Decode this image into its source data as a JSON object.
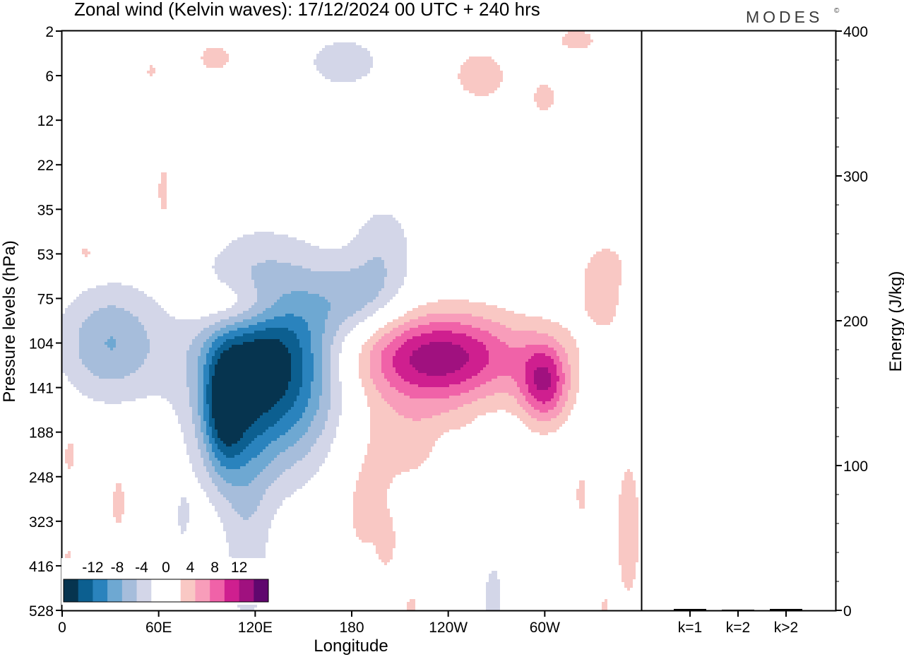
{
  "title": "Zonal wind (Kelvin waves):  17/12/2024  00 UTC  + 240 hrs",
  "logo": "MODES",
  "logo_mark": "©",
  "colors": {
    "neg": [
      "#06344f",
      "#0c5f90",
      "#2a83bd",
      "#6ea8d2",
      "#a6bddb",
      "#d3d6e8"
    ],
    "zero": "#ffffff",
    "pos": [
      "#f9c8c4",
      "#f89dba",
      "#f062a8",
      "#cf1f8f",
      "#a0117f",
      "#60076e"
    ]
  },
  "chart_data": [
    {
      "type": "heatmap",
      "title": "Zonal wind (Kelvin waves):  17/12/2024  00 UTC  + 240 hrs",
      "xlabel": "Longitude",
      "ylabel": "Pressure levels (hPa)",
      "x_ticks": [
        {
          "label": "0",
          "lon": 0
        },
        {
          "label": "60E",
          "lon": 60
        },
        {
          "label": "120E",
          "lon": 120
        },
        {
          "label": "180",
          "lon": 180
        },
        {
          "label": "120W",
          "lon": 240
        },
        {
          "label": "60W",
          "lon": 300
        }
      ],
      "xlim": [
        0,
        360
      ],
      "y_levels": [
        2,
        6,
        12,
        22,
        35,
        53,
        75,
        104,
        141,
        188,
        248,
        323,
        416,
        528
      ],
      "y_scale": "level-index",
      "colorbar": {
        "labels": [
          "-12",
          "-8",
          "-4",
          "0",
          "4",
          "8",
          "12"
        ],
        "levels": [
          -12,
          -8,
          -4,
          0,
          4,
          8,
          12
        ],
        "step": 2
      },
      "features": [
        {
          "lon": 128,
          "level_index": 7.5,
          "lon_width": 60,
          "level_height": 3.0,
          "peak": -14,
          "tilt_deg": -30
        },
        {
          "lon": 100,
          "level_index": 8.6,
          "lon_width": 18,
          "level_height": 2.0,
          "peak": -8,
          "tilt_deg": -50
        },
        {
          "lon": 115,
          "level_index": 11.0,
          "lon_width": 22,
          "level_height": 5.0,
          "peak": -3,
          "tilt_deg": -85
        },
        {
          "lon": 30,
          "level_index": 7.0,
          "lon_width": 45,
          "level_height": 1.8,
          "peak": -6,
          "tilt_deg": -20
        },
        {
          "lon": 185,
          "level_index": 6.0,
          "lon_width": 40,
          "level_height": 1.2,
          "peak": -4,
          "tilt_deg": -25
        },
        {
          "lon": 200,
          "level_index": 4.8,
          "lon_width": 28,
          "level_height": 1.5,
          "peak": -3,
          "tilt_deg": -10
        },
        {
          "lon": 175,
          "level_index": 0.7,
          "lon_width": 40,
          "level_height": 1.0,
          "peak": -3,
          "tilt_deg": 0
        },
        {
          "lon": 30,
          "level_index": 0.4,
          "lon_width": 40,
          "level_height": 0.7,
          "peak": -2,
          "tilt_deg": 0
        },
        {
          "lon": 318,
          "level_index": 2.9,
          "lon_width": 10,
          "level_height": 0.9,
          "peak": -2,
          "tilt_deg": 0
        },
        {
          "lon": 268,
          "level_index": 12.8,
          "lon_width": 10,
          "level_height": 1.6,
          "peak": -3,
          "tilt_deg": 0
        },
        {
          "lon": 240,
          "level_index": 9.8,
          "lon_width": 12,
          "level_height": 0.9,
          "peak": -3,
          "tilt_deg": 0
        },
        {
          "lon": 262,
          "level_index": 9.4,
          "lon_width": 8,
          "level_height": 0.7,
          "peak": -2,
          "tilt_deg": 0
        },
        {
          "lon": 282,
          "level_index": 9.4,
          "lon_width": 6,
          "level_height": 0.6,
          "peak": -2,
          "tilt_deg": 0
        },
        {
          "lon": 352,
          "level_index": 6.1,
          "lon_width": 8,
          "level_height": 0.8,
          "peak": -2,
          "tilt_deg": 0
        },
        {
          "lon": 75,
          "level_index": 11.0,
          "lon_width": 12,
          "level_height": 1.5,
          "peak": -2,
          "tilt_deg": 0
        },
        {
          "lon": 235,
          "level_index": 7.3,
          "lon_width": 75,
          "level_height": 1.4,
          "peak": 11,
          "tilt_deg": 5
        },
        {
          "lon": 300,
          "level_index": 7.9,
          "lon_width": 22,
          "level_height": 1.3,
          "peak": 9,
          "tilt_deg": -15
        },
        {
          "lon": 215,
          "level_index": 9.0,
          "lon_width": 55,
          "level_height": 1.8,
          "peak": 3,
          "tilt_deg": 0
        },
        {
          "lon": 188,
          "level_index": 10.8,
          "lon_width": 25,
          "level_height": 2.0,
          "peak": 2.5,
          "tilt_deg": -10
        },
        {
          "lon": 338,
          "level_index": 5.7,
          "lon_width": 30,
          "level_height": 1.8,
          "peak": 3,
          "tilt_deg": -35
        },
        {
          "lon": 110,
          "level_index": 6.2,
          "lon_width": 40,
          "level_height": 0.9,
          "peak": 6,
          "tilt_deg": -20
        },
        {
          "lon": 352,
          "level_index": 11.2,
          "lon_width": 14,
          "level_height": 3.0,
          "peak": 3,
          "tilt_deg": 0
        },
        {
          "lon": 323,
          "level_index": 10.4,
          "lon_width": 8,
          "level_height": 1.0,
          "peak": 2.5,
          "tilt_deg": 0
        },
        {
          "lon": 260,
          "level_index": 1.0,
          "lon_width": 30,
          "level_height": 1.0,
          "peak": 3,
          "tilt_deg": 0
        },
        {
          "lon": 300,
          "level_index": 1.5,
          "lon_width": 16,
          "level_height": 0.8,
          "peak": 2.5,
          "tilt_deg": 0
        },
        {
          "lon": 320,
          "level_index": 0.2,
          "lon_width": 28,
          "level_height": 0.6,
          "peak": 2.5,
          "tilt_deg": 0
        },
        {
          "lon": 95,
          "level_index": 0.6,
          "lon_width": 26,
          "level_height": 0.7,
          "peak": 2.5,
          "tilt_deg": 0
        },
        {
          "lon": 55,
          "level_index": 0.8,
          "lon_width": 12,
          "level_height": 0.8,
          "peak": 2.5,
          "tilt_deg": 0
        },
        {
          "lon": 63,
          "level_index": 3.6,
          "lon_width": 8,
          "level_height": 1.4,
          "peak": 2.5,
          "tilt_deg": 0
        },
        {
          "lon": 15,
          "level_index": 5.0,
          "lon_width": 14,
          "level_height": 0.6,
          "peak": 2.5,
          "tilt_deg": 0
        },
        {
          "lon": 5,
          "level_index": 9.5,
          "lon_width": 9,
          "level_height": 1.0,
          "peak": 2.5,
          "tilt_deg": 0
        },
        {
          "lon": 35,
          "level_index": 10.6,
          "lon_width": 10,
          "level_height": 1.4,
          "peak": 2.5,
          "tilt_deg": 0
        },
        {
          "lon": 4,
          "level_index": 12.0,
          "lon_width": 7,
          "level_height": 1.0,
          "peak": 2.5,
          "tilt_deg": 0
        },
        {
          "lon": 202,
          "level_index": 11.5,
          "lon_width": 8,
          "level_height": 0.8,
          "peak": 2.5,
          "tilt_deg": 0
        },
        {
          "lon": 217,
          "level_index": 13.0,
          "lon_width": 9,
          "level_height": 0.8,
          "peak": 2.5,
          "tilt_deg": 0
        },
        {
          "lon": 337,
          "level_index": 13.0,
          "lon_width": 6,
          "level_height": 0.6,
          "peak": 2.5,
          "tilt_deg": 0
        }
      ]
    },
    {
      "type": "bar",
      "ylabel": "Energy (J/kg)",
      "categories": [
        "k=1",
        "k=2",
        "k>2"
      ],
      "values": [
        1,
        0.5,
        1
      ],
      "ylim": [
        0,
        400
      ],
      "y_major_ticks": [
        0,
        100,
        200,
        300,
        400
      ],
      "y_minor_step": 20
    }
  ]
}
